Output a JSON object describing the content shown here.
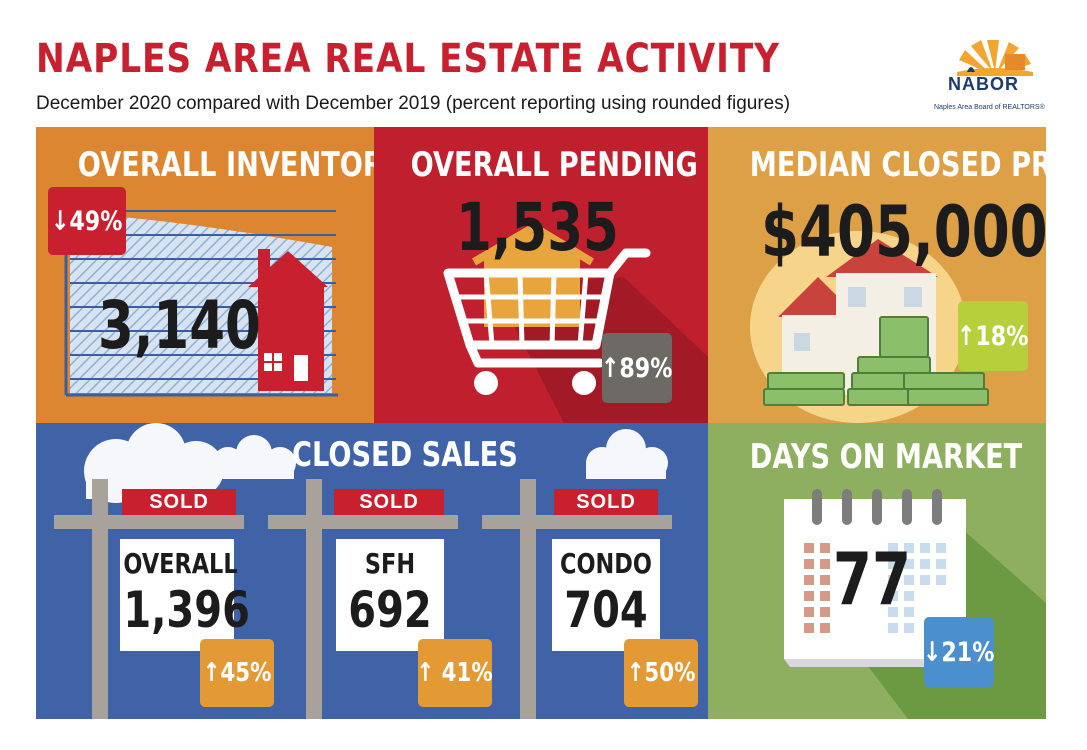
{
  "header": {
    "title": "NAPLES AREA REAL ESTATE ACTIVITY",
    "subtitle": "December 2020 compared with December 2019 (percent reporting using rounded figures)"
  },
  "logo": {
    "name": "NABOR",
    "tagline": "Naples Area Board of REALTORS®",
    "icon": "sun-dock-logo"
  },
  "colors": {
    "title_red": "#c8202f",
    "inventory_orange": "#dc8632",
    "pending_red": "#c01f2e",
    "median_gold": "#dda047",
    "closed_blue": "#3f63a6",
    "days_green": "#8daf5f",
    "badge_red": "#c8202f",
    "badge_gray": "#6d6a66",
    "badge_lime": "#b8cf3c",
    "badge_orange": "#e39a35",
    "badge_blue": "#4c8fcd"
  },
  "panels": {
    "inventory": {
      "heading": "OVERALL INVENTORY",
      "value": "3,140",
      "change": "↓49%",
      "direction": "down",
      "icon": "house-icon"
    },
    "pending": {
      "heading": "OVERALL PENDING SALES",
      "value": "1,535",
      "change": "↑89%",
      "direction": "up",
      "icon": "shopping-cart-icon"
    },
    "median": {
      "heading": "MEDIAN CLOSED PRICE",
      "value": "$405,000",
      "change": "↑18%",
      "direction": "up",
      "icon": "house-money-icon"
    },
    "closed": {
      "heading": "CLOSED SALES",
      "sold_label": "SOLD",
      "signs": [
        {
          "label": "OVERALL",
          "value": "1,396",
          "change": "↑45%"
        },
        {
          "label": "SFH",
          "value": "692",
          "change": "↑ 41%"
        },
        {
          "label": "CONDO",
          "value": "704",
          "change": "↑50%"
        }
      ]
    },
    "days": {
      "heading": "DAYS ON MARKET",
      "value": "77",
      "change": "↓21%",
      "direction": "down",
      "icon": "calendar-icon"
    }
  }
}
